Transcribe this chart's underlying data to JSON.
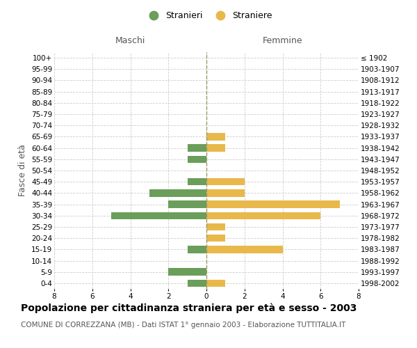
{
  "age_groups": [
    "100+",
    "95-99",
    "90-94",
    "85-89",
    "80-84",
    "75-79",
    "70-74",
    "65-69",
    "60-64",
    "55-59",
    "50-54",
    "45-49",
    "40-44",
    "35-39",
    "30-34",
    "25-29",
    "20-24",
    "15-19",
    "10-14",
    "5-9",
    "0-4"
  ],
  "birth_years": [
    "≤ 1902",
    "1903-1907",
    "1908-1912",
    "1913-1917",
    "1918-1922",
    "1923-1927",
    "1928-1932",
    "1933-1937",
    "1938-1942",
    "1943-1947",
    "1948-1952",
    "1953-1957",
    "1958-1962",
    "1963-1967",
    "1968-1972",
    "1973-1977",
    "1978-1982",
    "1983-1987",
    "1988-1992",
    "1993-1997",
    "1998-2002"
  ],
  "maschi": [
    0,
    0,
    0,
    0,
    0,
    0,
    0,
    0,
    1,
    1,
    0,
    1,
    3,
    2,
    5,
    0,
    0,
    1,
    0,
    2,
    1
  ],
  "femmine": [
    0,
    0,
    0,
    0,
    0,
    0,
    0,
    1,
    1,
    0,
    0,
    2,
    2,
    7,
    6,
    1,
    1,
    4,
    0,
    0,
    1
  ],
  "maschi_color": "#6a9e5a",
  "femmine_color": "#e8b84b",
  "center_line_color": "#999966",
  "grid_color": "#cccccc",
  "background_color": "#ffffff",
  "title": "Popolazione per cittadinanza straniera per età e sesso - 2003",
  "subtitle": "COMUNE DI CORREZZANA (MB) - Dati ISTAT 1° gennaio 2003 - Elaborazione TUTTITALIA.IT",
  "ylabel_left": "Fasce di età",
  "xlabel_left": "Maschi",
  "xlabel_top_right": "Femmine",
  "legend_stranieri": "Stranieri",
  "legend_straniere": "Straniere",
  "xlim": 8,
  "title_fontsize": 10,
  "subtitle_fontsize": 7.5,
  "label_fontsize": 9,
  "tick_fontsize": 7.5,
  "header_fontsize": 9
}
